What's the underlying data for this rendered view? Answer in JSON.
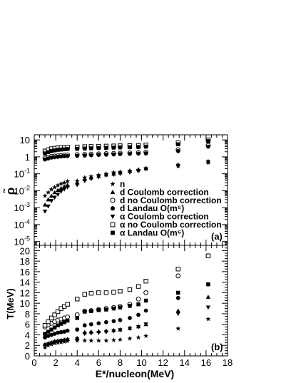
{
  "chart_data": [
    {
      "type": "scatter",
      "panel_label": "(a)",
      "ylabel": "ρ̃",
      "yscale": "log",
      "xlim": [
        0,
        18
      ],
      "ylim": [
        6e-06,
        20
      ],
      "ytick_labels": [
        {
          "value": 1e-05,
          "base": "10",
          "exp": "-5"
        },
        {
          "value": 0.0001,
          "base": "10",
          "exp": "-4"
        },
        {
          "value": 0.001,
          "base": "10",
          "exp": "-3"
        },
        {
          "value": 0.01,
          "base": "10",
          "exp": "-2"
        },
        {
          "value": 0.1,
          "base": "10",
          "exp": "-1"
        },
        {
          "value": 1,
          "base": "1",
          "exp": ""
        },
        {
          "value": 10,
          "base": "10",
          "exp": ""
        }
      ],
      "legend_placement": "center-right",
      "series": [
        {
          "name": "n",
          "marker": "star",
          "x": [
            1.0,
            1.3,
            1.6,
            1.9,
            2.2,
            2.5,
            2.8,
            3.1,
            4.0,
            4.7,
            5.3,
            6.0,
            6.7,
            7.4,
            8.0,
            8.9,
            9.7,
            10.4,
            13.4,
            16.2
          ],
          "y": [
            0.005,
            0.008,
            0.012,
            0.016,
            0.021,
            0.026,
            0.03,
            0.036,
            0.038,
            0.06,
            0.07,
            0.085,
            0.1,
            0.12,
            0.13,
            0.15,
            0.16,
            0.2,
            0.28,
            0.45
          ]
        },
        {
          "name": "d Coulomb correction",
          "marker": "triangle-up",
          "x": [
            1.0,
            1.3,
            1.6,
            1.9,
            2.2,
            2.5,
            2.8,
            3.1,
            4.0,
            4.7,
            5.3,
            6.0,
            6.7,
            7.4,
            8.0,
            8.9,
            9.7,
            10.4,
            13.4,
            16.2
          ],
          "y": [
            0.0015,
            0.003,
            0.005,
            0.008,
            0.011,
            0.014,
            0.018,
            0.022,
            0.03,
            0.048,
            0.06,
            0.075,
            0.09,
            0.1,
            0.12,
            0.15,
            0.18,
            0.22,
            0.35,
            0.55
          ]
        },
        {
          "name": "d no Coulomb correction",
          "marker": "circle-open",
          "x": [
            1.0,
            1.3,
            1.6,
            1.9,
            2.2,
            2.5,
            2.8,
            3.1,
            4.0,
            4.7,
            5.3,
            6.0,
            6.7,
            7.4,
            8.0,
            8.9,
            9.7,
            10.4,
            13.4,
            16.2
          ],
          "y": [
            0.85,
            0.95,
            1.05,
            1.1,
            1.15,
            1.2,
            1.25,
            1.3,
            1.35,
            1.4,
            1.45,
            1.5,
            1.55,
            1.6,
            1.65,
            1.7,
            1.8,
            1.9,
            2.6,
            4.8
          ]
        },
        {
          "name": "d Landau O(m⁶)",
          "marker": "circle-filled",
          "x": [
            1.0,
            1.3,
            1.6,
            1.9,
            2.2,
            2.5,
            2.8,
            3.1,
            4.0,
            4.7,
            5.3,
            6.0,
            6.7,
            7.4,
            8.0,
            8.9,
            9.7,
            10.4,
            13.4,
            16.2
          ],
          "y": [
            0.7,
            0.8,
            0.9,
            0.95,
            1.0,
            1.05,
            1.1,
            1.12,
            1.15,
            1.2,
            1.25,
            1.3,
            1.35,
            1.4,
            1.45,
            1.5,
            1.55,
            1.6,
            2.2,
            4.0
          ]
        },
        {
          "name": "α Coulomb correction",
          "marker": "triangle-down",
          "x": [
            1.0,
            1.3,
            1.6,
            1.9,
            2.2,
            2.5,
            2.8,
            3.1,
            4.0,
            4.7,
            5.3,
            6.0,
            6.7,
            7.4,
            8.0,
            8.9,
            9.7,
            10.4,
            13.4,
            16.2
          ],
          "y": [
            0.0006,
            0.0012,
            0.0025,
            0.004,
            0.006,
            0.009,
            0.012,
            0.016,
            0.022,
            0.038,
            0.05,
            0.065,
            0.08,
            0.09,
            0.1,
            0.12,
            0.15,
            0.19,
            0.3,
            0.5
          ]
        },
        {
          "name": "α no Coulomb correction",
          "marker": "square-open",
          "x": [
            1.0,
            1.3,
            1.6,
            1.9,
            2.2,
            2.5,
            2.8,
            3.1,
            4.0,
            4.7,
            5.3,
            6.0,
            6.7,
            7.4,
            8.0,
            8.9,
            9.7,
            10.4,
            13.4,
            16.2
          ],
          "y": [
            2.2,
            2.6,
            3.0,
            3.2,
            3.4,
            3.5,
            3.6,
            3.7,
            3.8,
            4.0,
            4.1,
            4.2,
            4.3,
            4.4,
            4.5,
            4.6,
            4.7,
            5.0,
            6.8,
            10.0
          ]
        },
        {
          "name": "α Landau O(m⁶)",
          "marker": "square-filled",
          "x": [
            1.0,
            1.3,
            1.6,
            1.9,
            2.2,
            2.5,
            2.8,
            3.1,
            4.0,
            4.7,
            5.3,
            6.0,
            6.7,
            7.4,
            8.0,
            8.9,
            9.7,
            10.4,
            13.4,
            16.2
          ],
          "y": [
            1.6,
            1.9,
            2.2,
            2.4,
            2.6,
            2.7,
            2.8,
            2.9,
            3.0,
            3.1,
            3.2,
            3.3,
            3.4,
            3.5,
            3.6,
            3.7,
            3.8,
            4.0,
            5.5,
            8.5
          ]
        }
      ]
    },
    {
      "type": "scatter",
      "panel_label": "(b)",
      "xlabel": "E*/nucleon(MeV)",
      "ylabel": "T(MeV)",
      "xlim": [
        0,
        18
      ],
      "ylim": [
        0,
        21
      ],
      "xticks": [
        0,
        2,
        4,
        6,
        8,
        10,
        12,
        14,
        16,
        18
      ],
      "yticks": [
        0,
        2,
        4,
        6,
        8,
        10,
        12,
        14,
        16,
        18,
        20
      ],
      "series": [
        {
          "name": "n",
          "marker": "star",
          "x": [
            1.0,
            1.3,
            1.6,
            1.9,
            2.2,
            2.5,
            2.8,
            3.1,
            4.0,
            4.7,
            5.3,
            6.0,
            6.7,
            7.4,
            8.0,
            8.9,
            9.7,
            10.4,
            13.4,
            16.2
          ],
          "y": [
            1.6,
            2.0,
            2.2,
            2.4,
            2.5,
            2.6,
            2.7,
            2.8,
            2.9,
            2.9,
            2.9,
            2.9,
            2.9,
            3.0,
            3.1,
            3.3,
            3.5,
            3.8,
            5.2,
            7.0
          ]
        },
        {
          "name": "d Coulomb correction",
          "marker": "triangle-up",
          "x": [
            1.0,
            1.3,
            1.6,
            1.9,
            2.2,
            2.5,
            2.8,
            3.1,
            4.0,
            4.7,
            5.3,
            6.0,
            6.7,
            7.4,
            8.0,
            8.9,
            9.7,
            10.4,
            13.4,
            16.2
          ],
          "y": [
            2.2,
            2.4,
            2.6,
            2.8,
            2.9,
            3.0,
            3.1,
            3.2,
            3.4,
            4.5,
            4.6,
            4.7,
            4.8,
            4.9,
            5.0,
            5.3,
            5.6,
            6.0,
            8.6,
            11.2
          ]
        },
        {
          "name": "d no Coulomb correction",
          "marker": "circle-open",
          "x": [
            1.0,
            1.3,
            1.6,
            1.9,
            2.2,
            2.5,
            2.8,
            3.1,
            4.0,
            4.7,
            5.3,
            6.0,
            6.7,
            7.4,
            8.0,
            8.9,
            9.7,
            10.4,
            13.4,
            16.2
          ],
          "y": [
            5.5,
            5.9,
            6.2,
            6.5,
            6.8,
            7.0,
            7.2,
            7.4,
            7.8,
            8.5,
            8.6,
            8.8,
            9.0,
            9.2,
            9.4,
            9.8,
            10.8,
            12.0,
            15.2,
            19.0
          ]
        },
        {
          "name": "d Landau O(m⁶)",
          "marker": "circle-filled",
          "x": [
            1.0,
            1.3,
            1.6,
            1.9,
            2.2,
            2.5,
            2.8,
            3.1,
            4.0,
            4.7,
            5.3,
            6.0,
            6.7,
            7.4,
            8.0,
            8.9,
            9.7,
            10.4,
            13.4,
            16.2
          ],
          "y": [
            3.5,
            3.8,
            4.0,
            4.2,
            4.4,
            4.5,
            4.6,
            4.8,
            5.0,
            5.8,
            6.0,
            6.2,
            6.4,
            6.6,
            6.8,
            7.2,
            7.8,
            8.6,
            11.0,
            13.6
          ]
        },
        {
          "name": "α Coulomb correction",
          "marker": "triangle-down",
          "x": [
            1.0,
            1.3,
            1.6,
            1.9,
            2.2,
            2.5,
            2.8,
            3.1,
            4.0,
            4.7,
            5.3,
            6.0,
            6.7,
            7.4,
            8.0,
            8.9,
            9.7,
            10.4,
            13.4,
            16.2
          ],
          "y": [
            2.0,
            2.2,
            2.4,
            2.6,
            2.7,
            2.8,
            2.9,
            3.0,
            3.2,
            4.2,
            4.3,
            4.4,
            4.5,
            4.7,
            4.9,
            5.2,
            5.5,
            6.0,
            8.0,
            9.2
          ]
        },
        {
          "name": "α no Coulomb correction",
          "marker": "square-open",
          "x": [
            1.0,
            1.3,
            1.6,
            1.9,
            2.2,
            2.5,
            2.8,
            3.1,
            4.0,
            4.7,
            5.3,
            6.0,
            6.7,
            7.4,
            8.0,
            8.9,
            9.7,
            10.4,
            13.4,
            16.2
          ],
          "y": [
            5.8,
            6.5,
            7.2,
            7.8,
            8.4,
            9.0,
            9.4,
            9.8,
            10.8,
            11.7,
            11.9,
            12.0,
            12.0,
            12.1,
            12.3,
            12.6,
            13.2,
            14.2,
            16.5,
            19.0
          ]
        },
        {
          "name": "α Landau O(m⁶)",
          "marker": "square-filled",
          "x": [
            1.0,
            1.3,
            1.6,
            1.9,
            2.2,
            2.5,
            2.8,
            3.1,
            4.0,
            4.7,
            5.3,
            6.0,
            6.7,
            7.4,
            8.0,
            8.9,
            9.7,
            10.4,
            13.4,
            16.2
          ],
          "y": [
            4.2,
            4.6,
            5.0,
            5.4,
            5.8,
            6.1,
            6.4,
            6.7,
            7.2,
            8.4,
            8.5,
            8.7,
            8.8,
            9.0,
            9.2,
            9.5,
            9.8,
            10.5,
            12.0,
            13.6
          ]
        }
      ]
    }
  ]
}
